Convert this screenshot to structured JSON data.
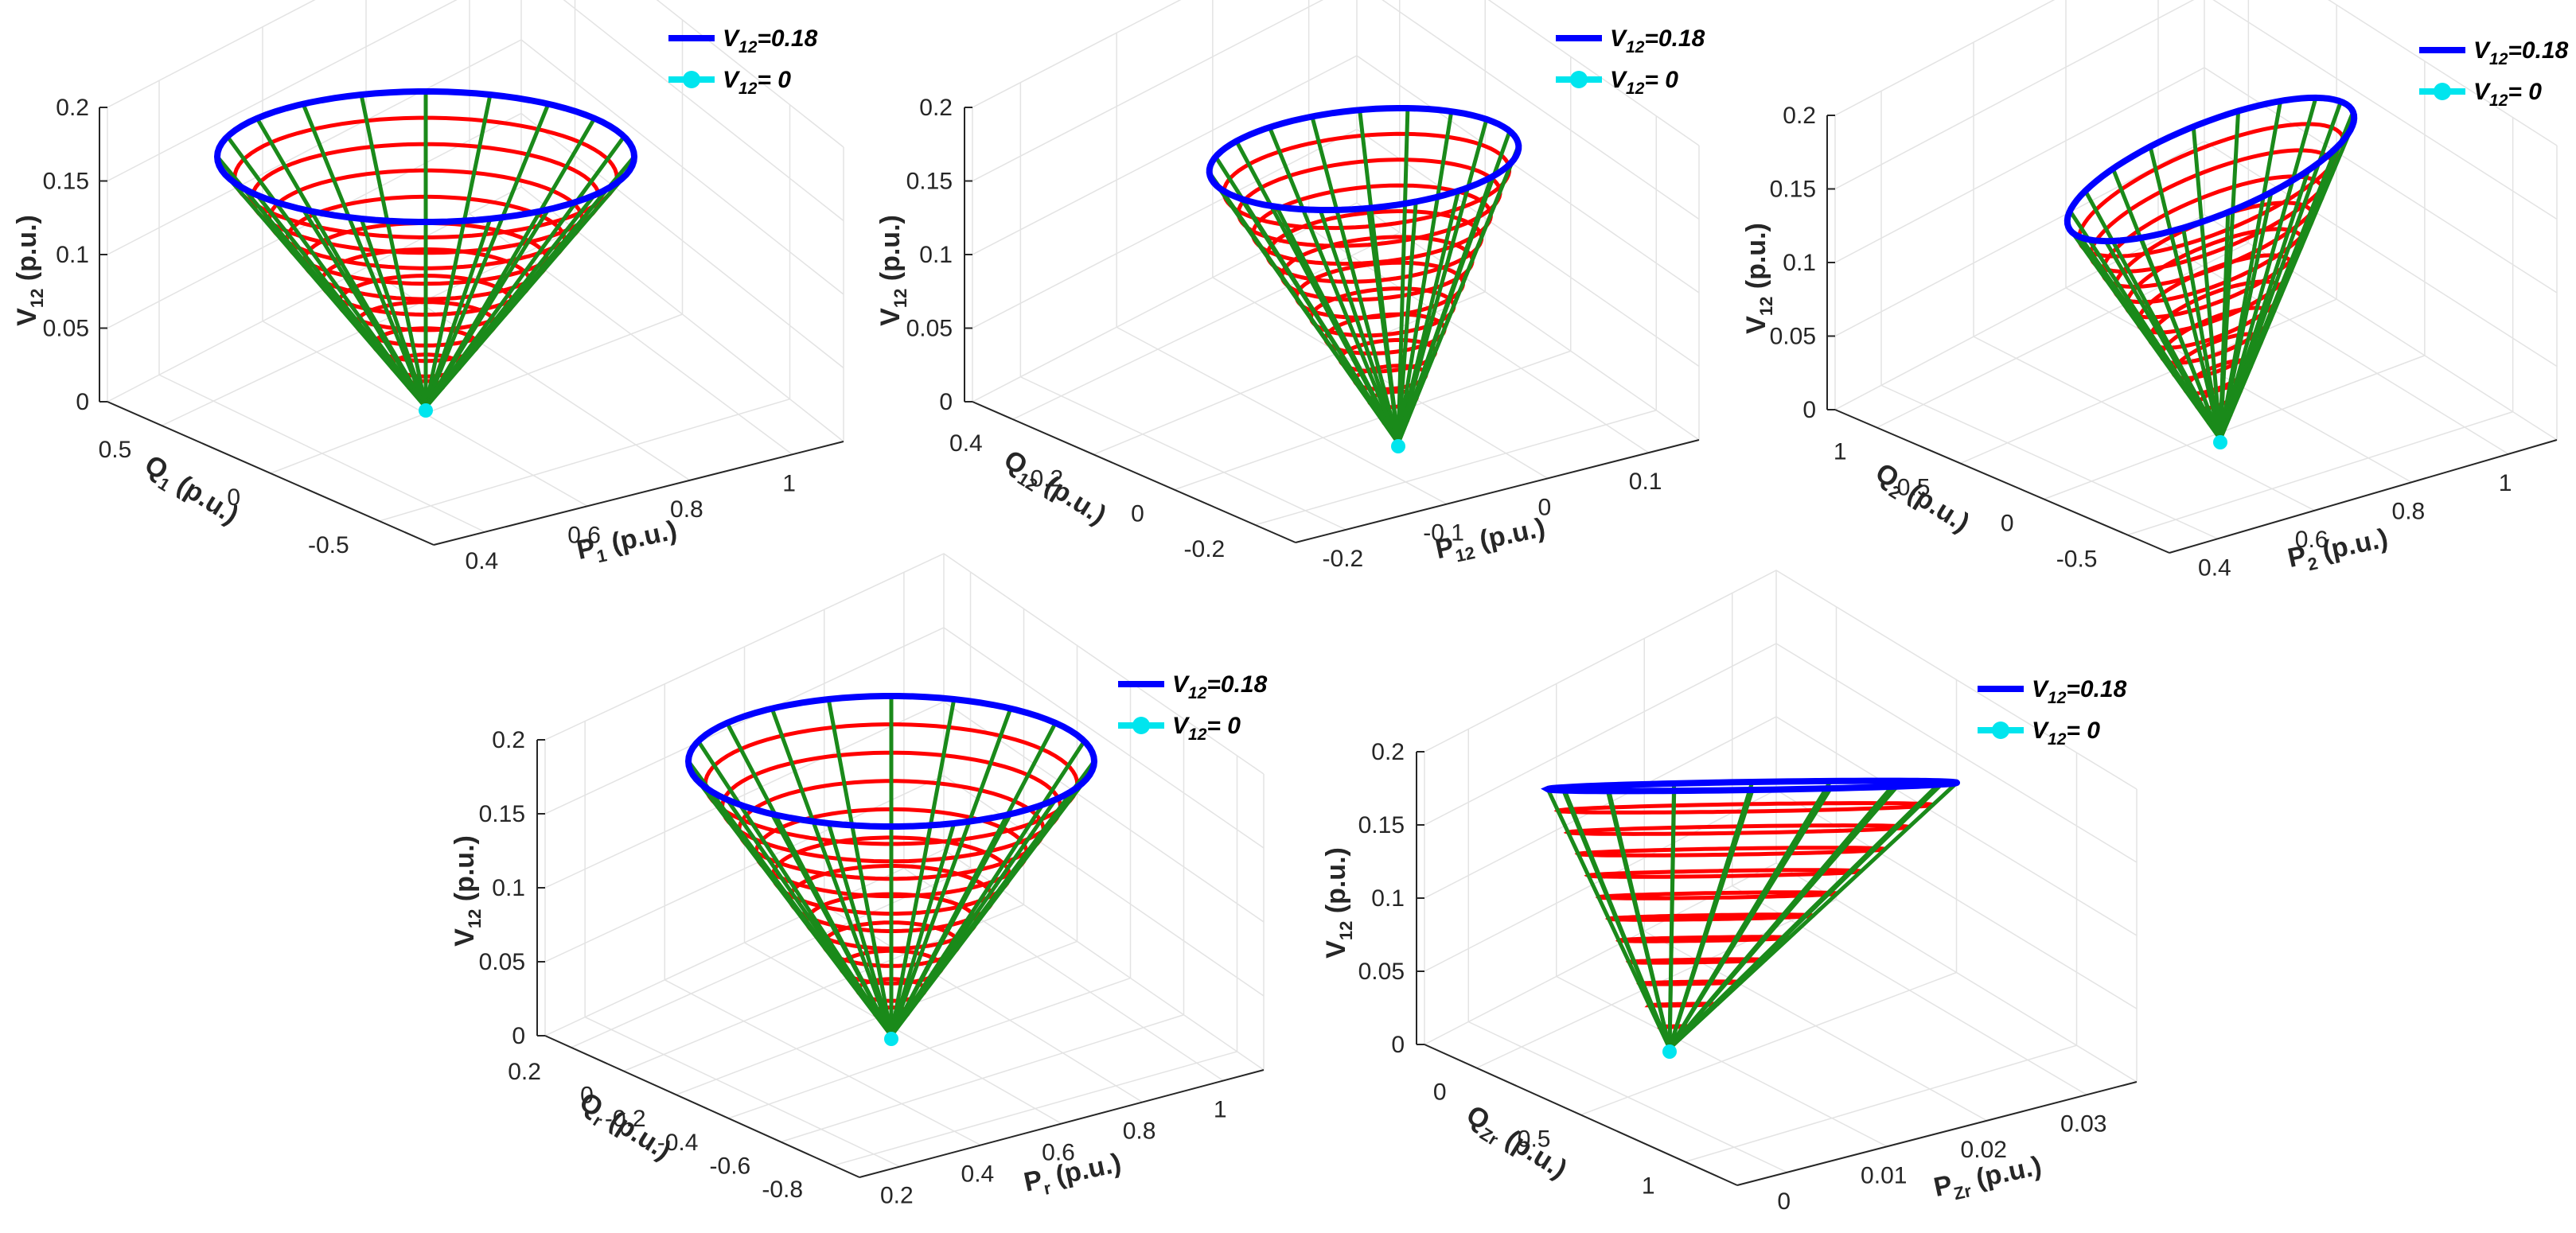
{
  "chart_data": [
    {
      "type": "surface3d",
      "title": "",
      "zlabel": {
        "main": "V",
        "sub": "12",
        "unit": " (p.u.)"
      },
      "ylabel": {
        "main": "Q",
        "sub": "1",
        "unit": " (p.u.)"
      },
      "xlabel": {
        "main": "P",
        "sub": "1",
        "unit": " (p.u.)"
      },
      "zlim": [
        0,
        0.2
      ],
      "zticks": [
        "0",
        "0.05",
        "0.1",
        "0.15",
        "0.2"
      ],
      "yticks": [
        "0.5",
        "0",
        "-0.5"
      ],
      "xticks": [
        "0.4",
        "0.6",
        "0.8",
        "1"
      ],
      "apex": {
        "z": 0
      },
      "rim": {
        "z": 0.18
      },
      "legend": [
        {
          "main": "V",
          "sub": "12",
          "rest": "=0.18",
          "color": "#0000ff",
          "style": "line"
        },
        {
          "main": "V",
          "sub": "12",
          "rest": "= 0",
          "color": "#00e5ee",
          "style": "dot"
        }
      ]
    },
    {
      "type": "surface3d",
      "title": "",
      "zlabel": {
        "main": "V",
        "sub": "12",
        "unit": " (p.u.)"
      },
      "ylabel": {
        "main": "Q",
        "sub": "12",
        "unit": " (p.u.)"
      },
      "xlabel": {
        "main": "P",
        "sub": "12",
        "unit": " (p.u.)"
      },
      "zlim": [
        0,
        0.2
      ],
      "zticks": [
        "0",
        "0.05",
        "0.1",
        "0.15",
        "0.2"
      ],
      "yticks": [
        "0.4",
        "0.2",
        "0",
        "-0.2"
      ],
      "xticks": [
        "-0.2",
        "-0.1",
        "0",
        "0.1"
      ],
      "apex": {
        "z": 0
      },
      "rim": {
        "z": 0.18
      },
      "legend": [
        {
          "main": "V",
          "sub": "12",
          "rest": "=0.18",
          "color": "#0000ff",
          "style": "line"
        },
        {
          "main": "V",
          "sub": "12",
          "rest": "= 0",
          "color": "#00e5ee",
          "style": "dot"
        }
      ]
    },
    {
      "type": "surface3d",
      "title": "",
      "zlabel": {
        "main": "V",
        "sub": "12",
        "unit": " (p.u.)"
      },
      "ylabel": {
        "main": "Q",
        "sub": "2",
        "unit": " (p.u.)"
      },
      "xlabel": {
        "main": "P",
        "sub": "2",
        "unit": " (p.u.)"
      },
      "zlim": [
        0,
        0.2
      ],
      "zticks": [
        "0",
        "0.05",
        "0.1",
        "0.15",
        "0.2"
      ],
      "yticks": [
        "1",
        "0.5",
        "0",
        "-0.5"
      ],
      "xticks": [
        "0.4",
        "0.6",
        "0.8",
        "1"
      ],
      "apex": {
        "z": 0
      },
      "rim": {
        "z": 0.18
      },
      "legend": [
        {
          "main": "V",
          "sub": "12",
          "rest": "=0.18",
          "color": "#0000ff",
          "style": "line"
        },
        {
          "main": "V",
          "sub": "12",
          "rest": "= 0",
          "color": "#00e5ee",
          "style": "dot"
        }
      ]
    },
    {
      "type": "surface3d",
      "title": "",
      "zlabel": {
        "main": "V",
        "sub": "12",
        "unit": " (p.u.)"
      },
      "ylabel": {
        "main": "Q",
        "sub": "r",
        "unit": " (p.u.)"
      },
      "xlabel": {
        "main": "P",
        "sub": "r",
        "unit": " (p.u.)"
      },
      "zlim": [
        0,
        0.2
      ],
      "zticks": [
        "0",
        "0.05",
        "0.1",
        "0.15",
        "0.2"
      ],
      "yticks": [
        "0.2",
        "0",
        "-0.2",
        "-0.4",
        "-0.6",
        "-0.8"
      ],
      "xticks": [
        "0.2",
        "0.4",
        "0.6",
        "0.8",
        "1"
      ],
      "apex": {
        "z": 0
      },
      "rim": {
        "z": 0.18
      },
      "legend": [
        {
          "main": "V",
          "sub": "12",
          "rest": "=0.18",
          "color": "#0000ff",
          "style": "line"
        },
        {
          "main": "V",
          "sub": "12",
          "rest": "= 0",
          "color": "#00e5ee",
          "style": "dot"
        }
      ]
    },
    {
      "type": "surface3d",
      "title": "",
      "zlabel": {
        "main": "V",
        "sub": "12",
        "unit": " (p.u.)"
      },
      "ylabel": {
        "main": "Q",
        "sub": "Zr",
        "unit": " (p.u.)"
      },
      "xlabel": {
        "main": "P",
        "sub": "Zr",
        "unit": " (p.u.)"
      },
      "zlim": [
        0,
        0.2
      ],
      "zticks": [
        "0",
        "0.05",
        "0.1",
        "0.15",
        "0.2"
      ],
      "yticks": [
        "0",
        "0.5",
        "1"
      ],
      "xticks": [
        "0",
        "0.01",
        "0.02",
        "0.03"
      ],
      "apex": {
        "z": 0
      },
      "rim": {
        "z": 0.18
      },
      "legend": [
        {
          "main": "V",
          "sub": "12",
          "rest": "=0.18",
          "color": "#0000ff",
          "style": "line"
        },
        {
          "main": "V",
          "sub": "12",
          "rest": "= 0",
          "color": "#00e5ee",
          "style": "dot"
        }
      ]
    }
  ],
  "colors": {
    "rings": "#ff0000",
    "generators": "#1a8a1a",
    "rim": "#0000ff",
    "apex": "#00e5ee",
    "grid": "#e3e3e3",
    "axis": "#262626"
  }
}
